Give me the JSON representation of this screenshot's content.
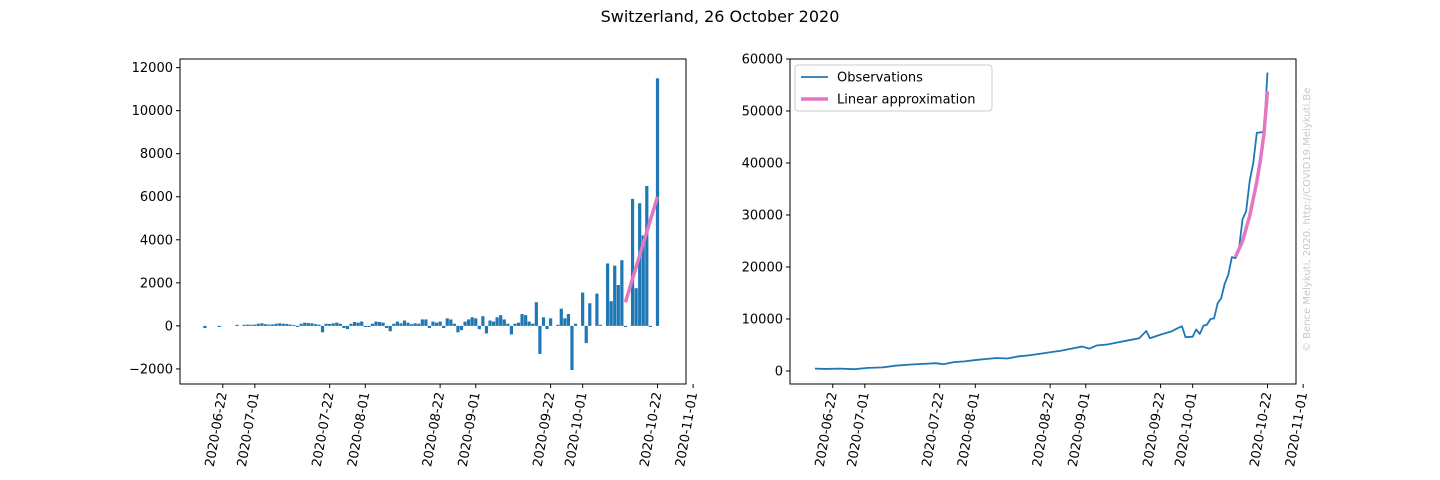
{
  "figure": {
    "title": "Switzerland, 26 October 2020",
    "credit": "© Bence Melykuti, 2020. http://COVID19.Melykuti.Be"
  },
  "colors": {
    "observations": "#1f77b4",
    "approximation": "#e377c2"
  },
  "chart_data": [
    {
      "type": "bar",
      "title": "",
      "xlabel": "",
      "ylabel": "",
      "x_type": "date",
      "xlim": [
        "2020-06-10",
        "2020-10-30"
      ],
      "ylim": [
        -2700,
        12400
      ],
      "xticks": [
        "2020-06-22",
        "2020-07-01",
        "2020-07-22",
        "2020-08-01",
        "2020-08-22",
        "2020-09-01",
        "2020-09-22",
        "2020-10-01",
        "2020-10-22",
        "2020-11-01"
      ],
      "yticks": [
        -2000,
        0,
        2000,
        4000,
        6000,
        8000,
        10000,
        12000
      ],
      "series": [
        {
          "type": "bar",
          "data": [
            [
              "2020-06-17",
              -100
            ],
            [
              "2020-06-21",
              -50
            ],
            [
              "2020-06-26",
              50
            ],
            [
              "2020-06-28",
              50
            ],
            [
              "2020-06-29",
              60
            ],
            [
              "2020-06-30",
              50
            ],
            [
              "2020-07-01",
              60
            ],
            [
              "2020-07-02",
              100
            ],
            [
              "2020-07-03",
              120
            ],
            [
              "2020-07-04",
              80
            ],
            [
              "2020-07-05",
              60
            ],
            [
              "2020-07-06",
              70
            ],
            [
              "2020-07-07",
              100
            ],
            [
              "2020-07-08",
              120
            ],
            [
              "2020-07-09",
              100
            ],
            [
              "2020-07-10",
              90
            ],
            [
              "2020-07-11",
              60
            ],
            [
              "2020-07-12",
              40
            ],
            [
              "2020-07-13",
              -50
            ],
            [
              "2020-07-14",
              100
            ],
            [
              "2020-07-15",
              150
            ],
            [
              "2020-07-16",
              130
            ],
            [
              "2020-07-17",
              120
            ],
            [
              "2020-07-18",
              80
            ],
            [
              "2020-07-19",
              60
            ],
            [
              "2020-07-20",
              -300
            ],
            [
              "2020-07-21",
              100
            ],
            [
              "2020-07-22",
              90
            ],
            [
              "2020-07-23",
              120
            ],
            [
              "2020-07-24",
              150
            ],
            [
              "2020-07-25",
              100
            ],
            [
              "2020-07-26",
              -100
            ],
            [
              "2020-07-27",
              -150
            ],
            [
              "2020-07-28",
              100
            ],
            [
              "2020-07-29",
              180
            ],
            [
              "2020-07-30",
              150
            ],
            [
              "2020-07-31",
              200
            ],
            [
              "2020-08-01",
              -50
            ],
            [
              "2020-08-02",
              -50
            ],
            [
              "2020-08-03",
              100
            ],
            [
              "2020-08-04",
              200
            ],
            [
              "2020-08-05",
              180
            ],
            [
              "2020-08-06",
              150
            ],
            [
              "2020-08-07",
              -100
            ],
            [
              "2020-08-08",
              -250
            ],
            [
              "2020-08-09",
              100
            ],
            [
              "2020-08-10",
              200
            ],
            [
              "2020-08-11",
              120
            ],
            [
              "2020-08-12",
              250
            ],
            [
              "2020-08-13",
              150
            ],
            [
              "2020-08-14",
              80
            ],
            [
              "2020-08-15",
              120
            ],
            [
              "2020-08-16",
              100
            ],
            [
              "2020-08-17",
              300
            ],
            [
              "2020-08-18",
              300
            ],
            [
              "2020-08-19",
              -100
            ],
            [
              "2020-08-20",
              200
            ],
            [
              "2020-08-21",
              150
            ],
            [
              "2020-08-22",
              200
            ],
            [
              "2020-08-23",
              -100
            ],
            [
              "2020-08-24",
              350
            ],
            [
              "2020-08-25",
              300
            ],
            [
              "2020-08-26",
              100
            ],
            [
              "2020-08-27",
              -300
            ],
            [
              "2020-08-28",
              -200
            ],
            [
              "2020-08-29",
              200
            ],
            [
              "2020-08-30",
              300
            ],
            [
              "2020-08-31",
              400
            ],
            [
              "2020-09-01",
              350
            ],
            [
              "2020-09-02",
              -150
            ],
            [
              "2020-09-03",
              450
            ],
            [
              "2020-09-04",
              -350
            ],
            [
              "2020-09-05",
              250
            ],
            [
              "2020-09-06",
              200
            ],
            [
              "2020-09-07",
              400
            ],
            [
              "2020-09-08",
              500
            ],
            [
              "2020-09-09",
              300
            ],
            [
              "2020-09-10",
              100
            ],
            [
              "2020-09-11",
              -400
            ],
            [
              "2020-09-12",
              100
            ],
            [
              "2020-09-13",
              150
            ],
            [
              "2020-09-14",
              550
            ],
            [
              "2020-09-15",
              500
            ],
            [
              "2020-09-16",
              200
            ],
            [
              "2020-09-17",
              100
            ],
            [
              "2020-09-18",
              1100
            ],
            [
              "2020-09-19",
              -1300
            ],
            [
              "2020-09-20",
              400
            ],
            [
              "2020-09-21",
              -150
            ],
            [
              "2020-09-22",
              350
            ],
            [
              "2020-09-24",
              50
            ],
            [
              "2020-09-25",
              800
            ],
            [
              "2020-09-26",
              350
            ],
            [
              "2020-09-27",
              550
            ],
            [
              "2020-09-28",
              -2050
            ],
            [
              "2020-09-29",
              100
            ],
            [
              "2020-10-01",
              1550
            ],
            [
              "2020-10-02",
              -800
            ],
            [
              "2020-10-03",
              1050
            ],
            [
              "2020-10-05",
              1500
            ],
            [
              "2020-10-06",
              50
            ],
            [
              "2020-10-08",
              2900
            ],
            [
              "2020-10-09",
              1150
            ],
            [
              "2020-10-10",
              2800
            ],
            [
              "2020-10-11",
              1900
            ],
            [
              "2020-10-12",
              3050
            ],
            [
              "2020-10-13",
              -50
            ],
            [
              "2020-10-15",
              5900
            ],
            [
              "2020-10-16",
              1750
            ],
            [
              "2020-10-17",
              5700
            ],
            [
              "2020-10-18",
              4200
            ],
            [
              "2020-10-19",
              6500
            ],
            [
              "2020-10-20",
              -50
            ],
            [
              "2020-10-22",
              11500
            ]
          ]
        },
        {
          "type": "line",
          "data": [
            [
              "2020-10-13",
              1100
            ],
            [
              "2020-10-22",
              6000
            ]
          ]
        }
      ]
    },
    {
      "type": "line",
      "title": "",
      "xlabel": "",
      "ylabel": "",
      "x_type": "date",
      "xlim": [
        "2020-06-10",
        "2020-10-30"
      ],
      "ylim": [
        -2500,
        60000
      ],
      "xticks": [
        "2020-06-22",
        "2020-07-01",
        "2020-07-22",
        "2020-08-01",
        "2020-08-22",
        "2020-09-01",
        "2020-09-22",
        "2020-10-01",
        "2020-10-22",
        "2020-11-01"
      ],
      "yticks": [
        0,
        10000,
        20000,
        30000,
        40000,
        50000,
        60000
      ],
      "legend_position": "top-left",
      "series": [
        {
          "name": "Observations",
          "type": "line",
          "data": [
            [
              "2020-06-17",
              450
            ],
            [
              "2020-06-20",
              400
            ],
            [
              "2020-06-24",
              450
            ],
            [
              "2020-06-28",
              350
            ],
            [
              "2020-07-02",
              600
            ],
            [
              "2020-07-06",
              700
            ],
            [
              "2020-07-10",
              1050
            ],
            [
              "2020-07-14",
              1250
            ],
            [
              "2020-07-18",
              1400
            ],
            [
              "2020-07-21",
              1500
            ],
            [
              "2020-07-23",
              1300
            ],
            [
              "2020-07-26",
              1700
            ],
            [
              "2020-07-29",
              1850
            ],
            [
              "2020-08-01",
              2100
            ],
            [
              "2020-08-04",
              2300
            ],
            [
              "2020-08-07",
              2500
            ],
            [
              "2020-08-10",
              2400
            ],
            [
              "2020-08-13",
              2800
            ],
            [
              "2020-08-16",
              3000
            ],
            [
              "2020-08-19",
              3300
            ],
            [
              "2020-08-22",
              3600
            ],
            [
              "2020-08-25",
              3900
            ],
            [
              "2020-08-28",
              4300
            ],
            [
              "2020-08-31",
              4700
            ],
            [
              "2020-09-02",
              4300
            ],
            [
              "2020-09-04",
              4900
            ],
            [
              "2020-09-07",
              5100
            ],
            [
              "2020-09-10",
              5500
            ],
            [
              "2020-09-13",
              5900
            ],
            [
              "2020-09-16",
              6300
            ],
            [
              "2020-09-18",
              7700
            ],
            [
              "2020-09-19",
              6300
            ],
            [
              "2020-09-22",
              7000
            ],
            [
              "2020-09-25",
              7600
            ],
            [
              "2020-09-27",
              8300
            ],
            [
              "2020-09-28",
              8600
            ],
            [
              "2020-09-29",
              6500
            ],
            [
              "2020-10-01",
              6600
            ],
            [
              "2020-10-02",
              8000
            ],
            [
              "2020-10-03",
              7100
            ],
            [
              "2020-10-04",
              8700
            ],
            [
              "2020-10-05",
              8900
            ],
            [
              "2020-10-06",
              10000
            ],
            [
              "2020-10-07",
              10100
            ],
            [
              "2020-10-08",
              13000
            ],
            [
              "2020-10-09",
              14000
            ],
            [
              "2020-10-10",
              16800
            ],
            [
              "2020-10-11",
              18500
            ],
            [
              "2020-10-12",
              21900
            ],
            [
              "2020-10-13",
              21700
            ],
            [
              "2020-10-14",
              23500
            ],
            [
              "2020-10-15",
              29200
            ],
            [
              "2020-10-16",
              30700
            ],
            [
              "2020-10-17",
              36500
            ],
            [
              "2020-10-18",
              40000
            ],
            [
              "2020-10-19",
              45800
            ],
            [
              "2020-10-21",
              46000
            ],
            [
              "2020-10-22",
              57400
            ]
          ]
        },
        {
          "name": "Linear approximation",
          "type": "line",
          "data": [
            [
              "2020-10-13",
              21900
            ],
            [
              "2020-10-15",
              25000
            ],
            [
              "2020-10-17",
              29800
            ],
            [
              "2020-10-19",
              36400
            ],
            [
              "2020-10-20",
              40500
            ],
            [
              "2020-10-21",
              45600
            ],
            [
              "2020-10-22",
              53800
            ]
          ]
        }
      ]
    }
  ]
}
